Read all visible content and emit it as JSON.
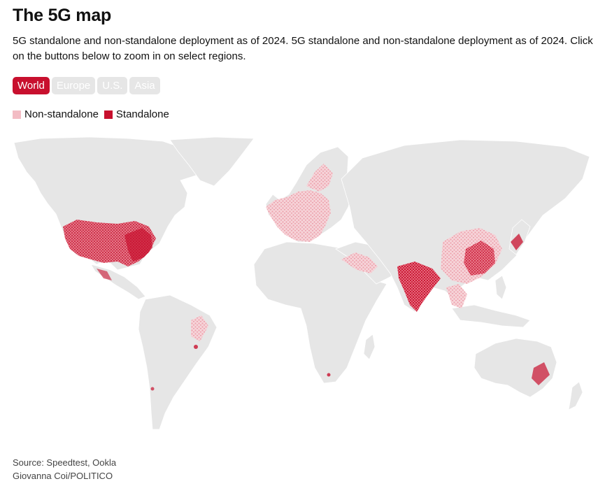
{
  "header": {
    "title": "The 5G map",
    "subtitle": "5G standalone and non-standalone deployment as of 2024. 5G standalone and non-standalone deployment as of 2024. Click on the buttons below to zoom in on select regions."
  },
  "region_buttons": [
    {
      "label": "World",
      "active": true
    },
    {
      "label": "Europe",
      "active": false
    },
    {
      "label": "U.S.",
      "active": false
    },
    {
      "label": "Asia",
      "active": false
    }
  ],
  "legend": {
    "non_standalone_label": "Non-standalone",
    "standalone_label": "Standalone"
  },
  "colors": {
    "accent": "#c8102e",
    "standalone": "#c8102e",
    "non_standalone": "#f3bcc4",
    "land": "#e6e6e6",
    "button_inactive": "#e6e6e6"
  },
  "footer": {
    "source": "Source: Speedtest, Ookla",
    "credit": "Giovanna Coi/POLITICO"
  }
}
